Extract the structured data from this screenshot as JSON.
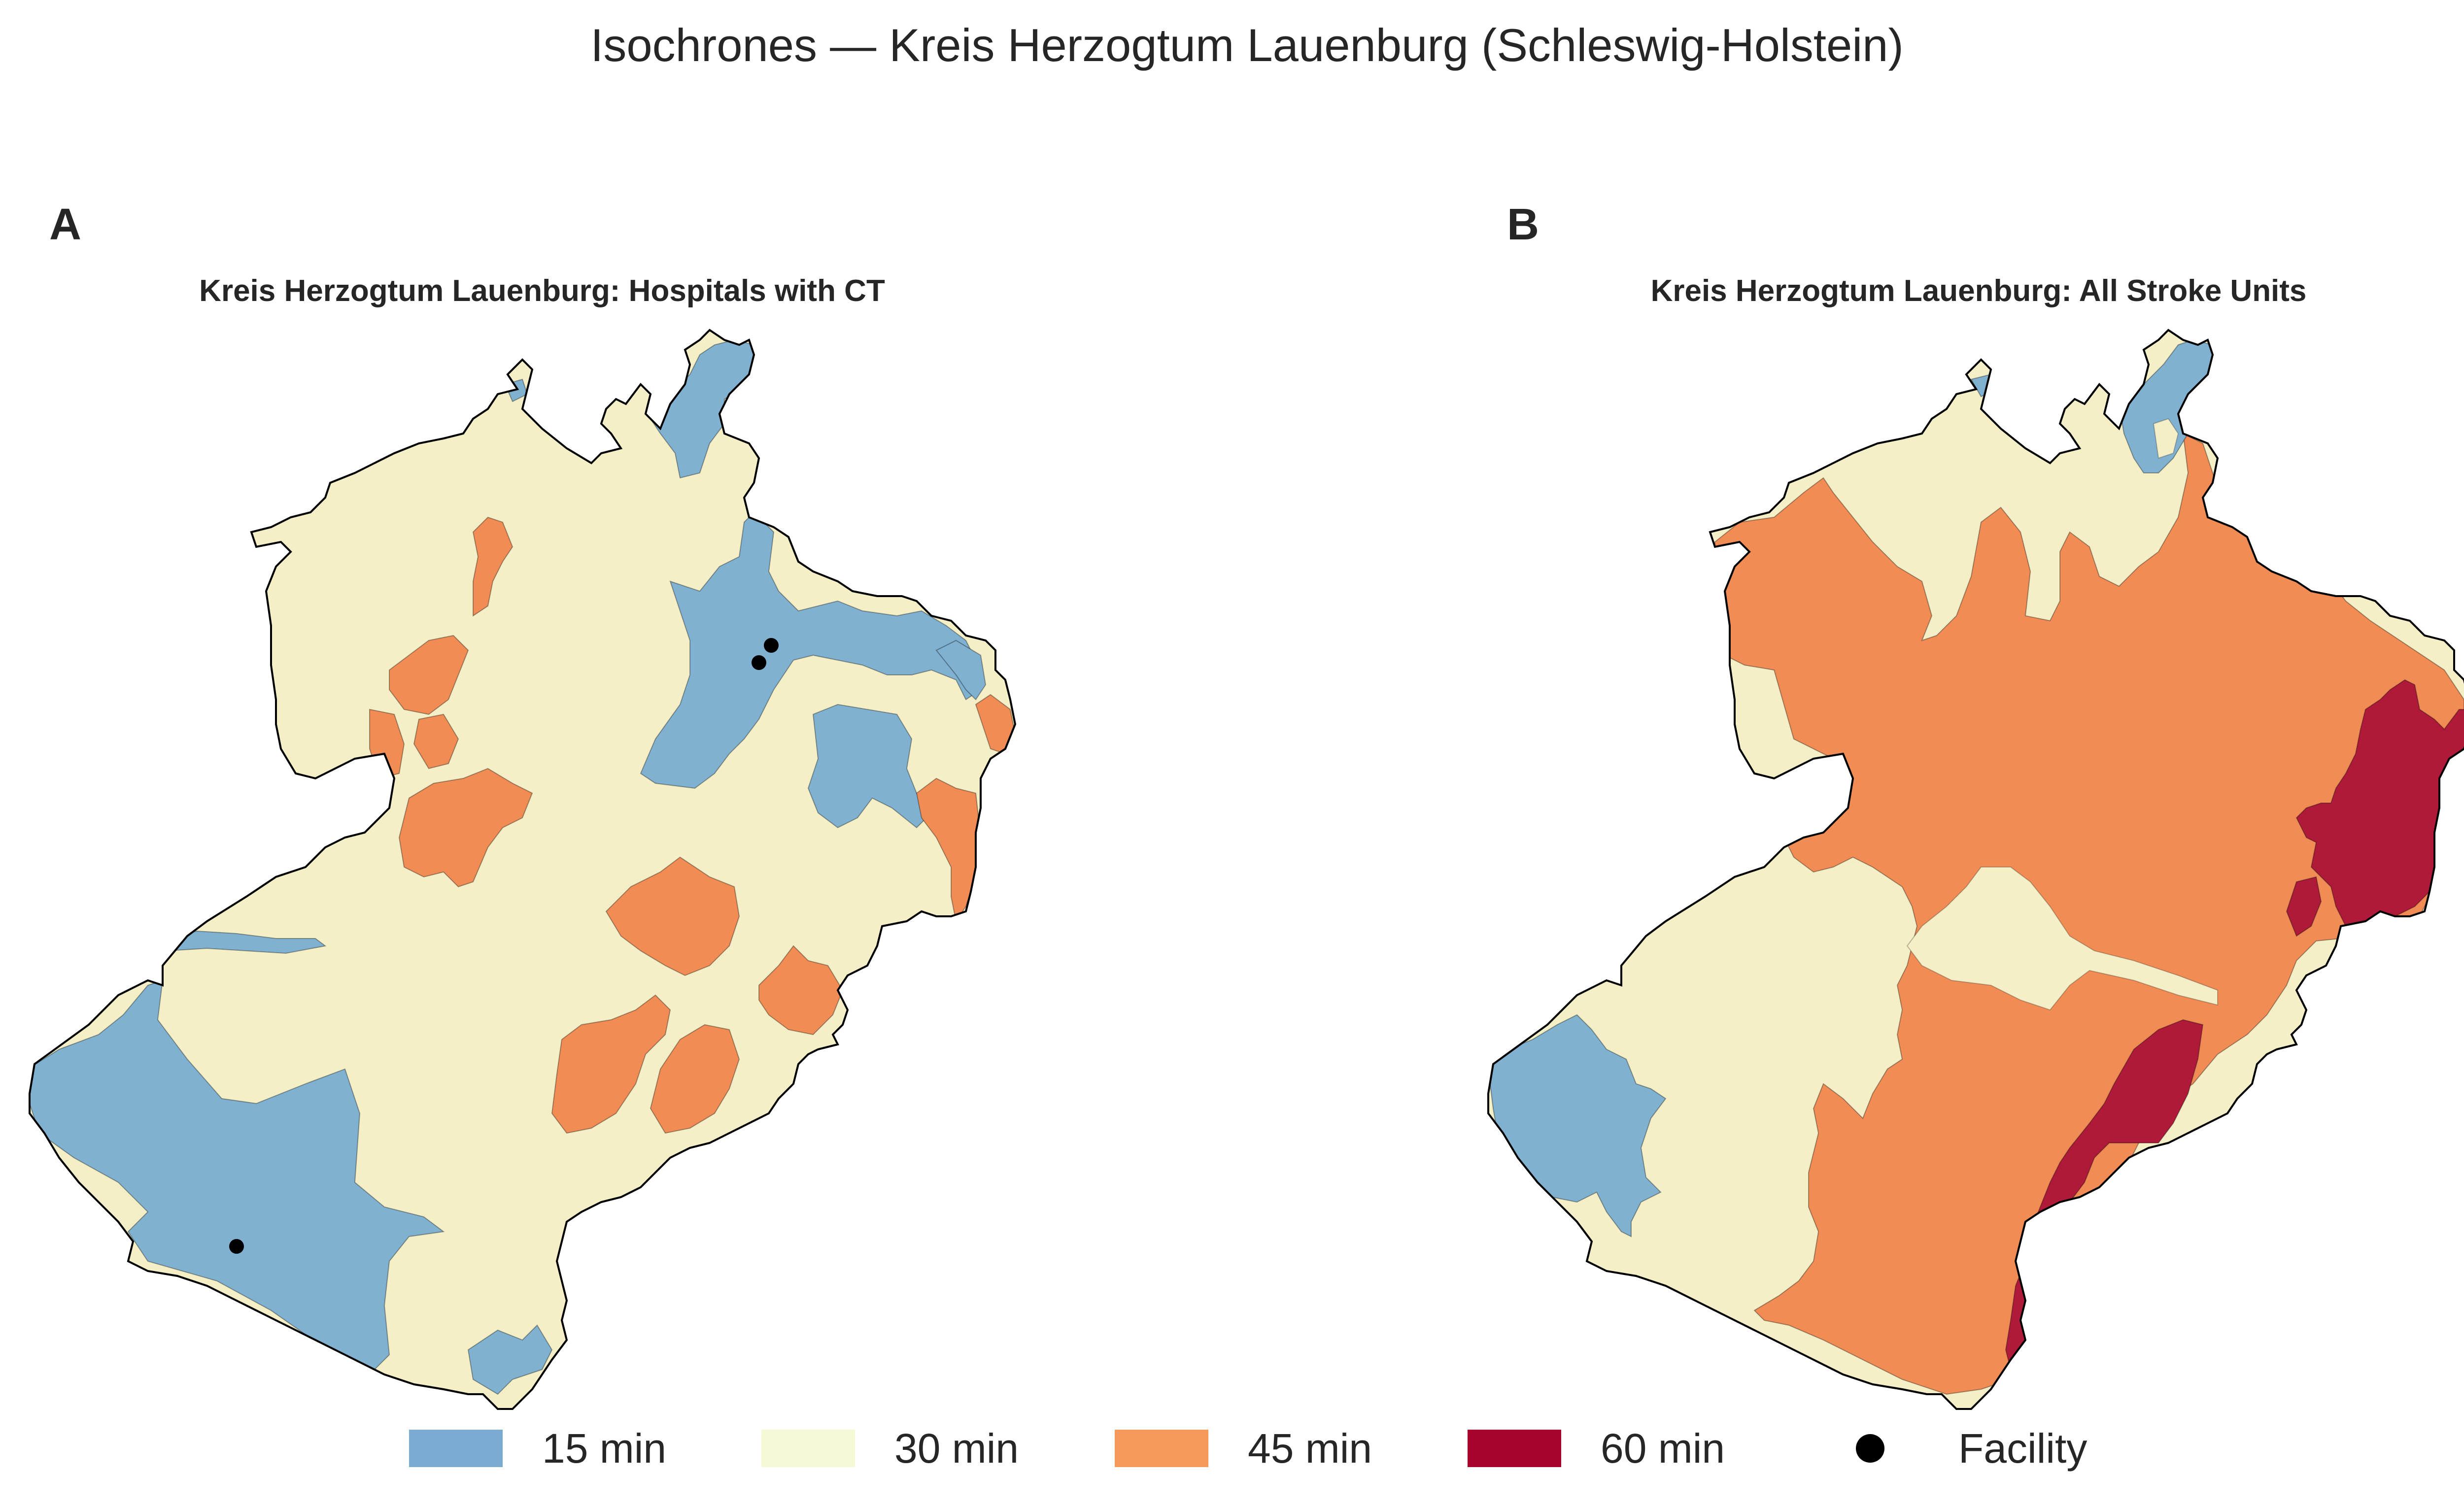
{
  "title": "Isochrones — Kreis Herzogtum Lauenburg (Schleswig-Holstein)",
  "panels": [
    {
      "letter": "A",
      "title": "Kreis Herzogtum Lauenburg: Hospitals with CT"
    },
    {
      "letter": "B",
      "title": "Kreis Herzogtum Lauenburg: All Stroke Units"
    }
  ],
  "legend": {
    "items": [
      {
        "label": "15 min",
        "color": "#79acd0"
      },
      {
        "label": "30 min",
        "color": "#f7f8d6"
      },
      {
        "label": "45 min",
        "color": "#f59a5a"
      },
      {
        "label": "60 min",
        "color": "#a6042c"
      }
    ],
    "facility_label": "Facility"
  },
  "colors": {
    "map_15": "#80b1d1",
    "map_30": "#f4efc7",
    "map_45": "#f18c55",
    "map_60": "#b01a3a",
    "facility": "#000000",
    "border": "#000000"
  }
}
